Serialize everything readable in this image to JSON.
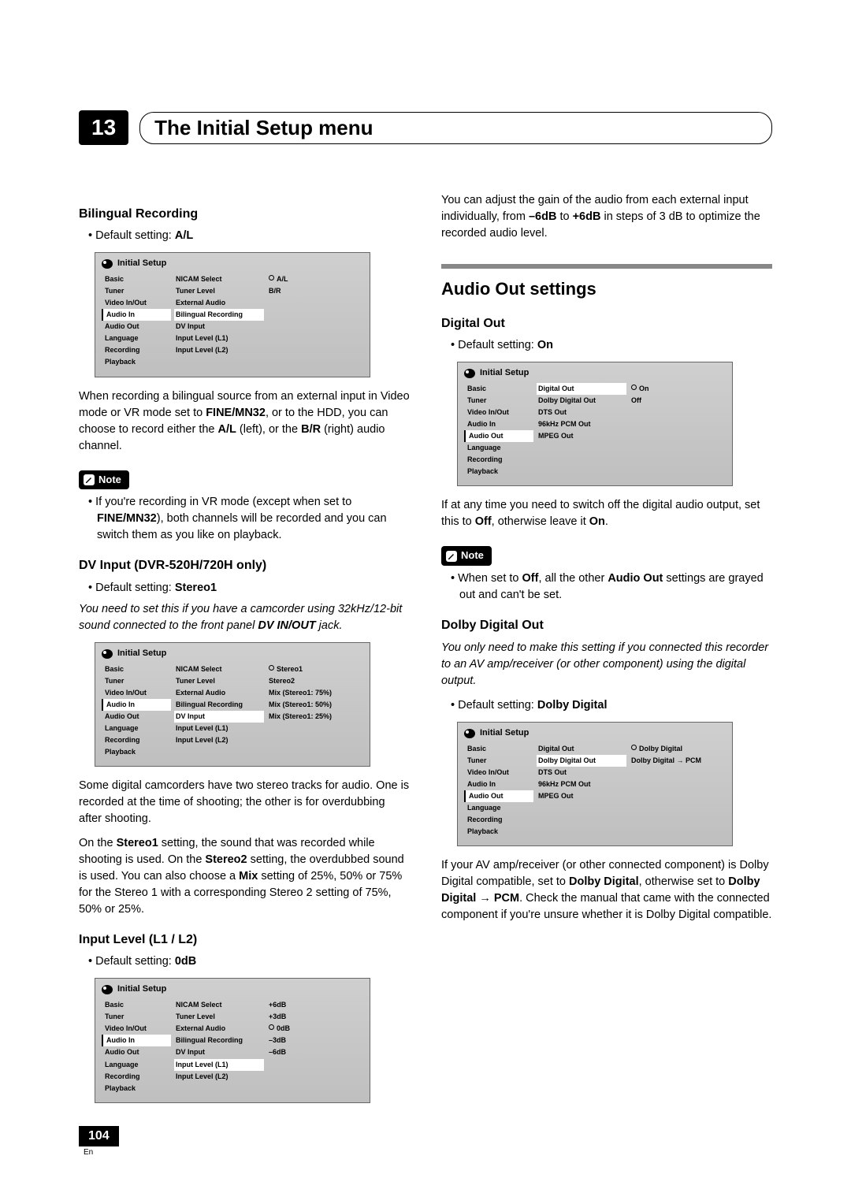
{
  "chapter": {
    "number": "13",
    "title": "The Initial Setup menu"
  },
  "page": {
    "num": "104",
    "lang": "En"
  },
  "left": {
    "h1": "Bilingual Recording",
    "h1_default": "A/L",
    "p1a": "When recording a bilingual source from an external input in Video mode or VR mode set to ",
    "p1b": "FINE/MN32",
    "p1c": ", or to the HDD, you can choose to record either the ",
    "p1d": "A/L",
    "p1e": " (left), or the ",
    "p1f": "B/R",
    "p1g": " (right) audio channel.",
    "note1a": "If you're recording in VR mode (except when set to ",
    "note1b": "FINE/MN32",
    "note1c": "), both channels will be recorded and you can switch them as you like on playback.",
    "h2": "DV Input (DVR-520H/720H only)",
    "h2_default": "Stereo1",
    "h2_ital_a": "You need to set this if you have a camcorder using 32kHz/12-bit sound connected to the front panel ",
    "h2_ital_b": "DV IN/OUT",
    "h2_ital_c": " jack.",
    "p2": "Some digital camcorders have two stereo tracks for audio. One is recorded at the time of shooting; the other is for overdubbing after shooting.",
    "p3a": "On the ",
    "p3b": "Stereo1",
    "p3c": " setting, the sound that was recorded while shooting is used. On the ",
    "p3d": "Stereo2",
    "p3e": " setting, the overdubbed sound is used. You can also choose a ",
    "p3f": "Mix",
    "p3g": " setting of 25%, 50% or 75% for the Stereo 1 with a corresponding Stereo 2 setting of 75%, 50% or 25%.",
    "h3": "Input Level (L1 / L2)",
    "h3_default": "0dB"
  },
  "right": {
    "p0a": "You can adjust the gain of the audio from each external input individually, from ",
    "p0b": "–6dB",
    "p0c": " to ",
    "p0d": "+6dB",
    "p0e": " in steps of 3 dB to optimize the recorded audio level.",
    "section": "Audio Out settings",
    "h1": "Digital Out",
    "h1_default": "On",
    "p1a": "If at any time you need to switch off the digital audio output, set this to ",
    "p1b": "Off",
    "p1c": ", otherwise leave it ",
    "p1d": "On",
    "p1e": ".",
    "note1a": "When set to ",
    "note1b": "Off",
    "note1c": ", all the other ",
    "note1d": "Audio Out",
    "note1e": " settings are grayed out and can't be set.",
    "h2": "Dolby Digital Out",
    "h2_ital": "You only need to make this setting if you connected this recorder to an AV amp/receiver (or other component) using the digital output.",
    "h2_default": "Dolby Digital",
    "p2a": "If your AV amp/receiver (or other connected component) is Dolby Digital compatible, set to ",
    "p2b": "Dolby Digital",
    "p2c": ", otherwise set to ",
    "p2d": "Dolby Digital → PCM",
    "p2e": ". Check the manual that came with the connected component if you're unsure whether it is Dolby Digital compatible."
  },
  "menus": {
    "left_items": [
      "Basic",
      "Tuner",
      "Video In/Out",
      "Audio In",
      "Audio Out",
      "Language",
      "Recording",
      "Playback"
    ],
    "title": "Initial Setup",
    "ss1": {
      "sel": "Audio In",
      "mid": [
        "NICAM Select",
        "Tuner Level",
        "External Audio",
        "Bilingual Recording",
        "DV Input",
        "Input Level (L1)",
        "Input Level (L2)"
      ],
      "hl": "Bilingual Recording",
      "right": [
        "A/L",
        "B/R"
      ],
      "rsel": "A/L"
    },
    "ss2": {
      "sel": "Audio In",
      "mid": [
        "NICAM Select",
        "Tuner Level",
        "External Audio",
        "Bilingual Recording",
        "DV Input",
        "Input Level (L1)",
        "Input Level (L2)"
      ],
      "hl": "DV Input",
      "right": [
        "Stereo1",
        "Stereo2",
        "Mix (Stereo1: 75%)",
        "Mix (Stereo1: 50%)",
        "Mix (Stereo1: 25%)"
      ],
      "rsel": "Stereo1"
    },
    "ss3": {
      "sel": "Audio In",
      "mid": [
        "NICAM Select",
        "Tuner Level",
        "External Audio",
        "Bilingual Recording",
        "DV Input",
        "Input Level (L1)",
        "Input Level (L2)"
      ],
      "hl": "Input Level (L1)",
      "right": [
        "+6dB",
        "+3dB",
        "0dB",
        "–3dB",
        "–6dB"
      ],
      "rsel": "0dB"
    },
    "ss4": {
      "sel": "Audio Out",
      "mid": [
        "Digital Out",
        "Dolby Digital Out",
        "DTS Out",
        "96kHz PCM Out",
        "MPEG Out"
      ],
      "hl": "Digital Out",
      "right": [
        "On",
        "Off"
      ],
      "rsel": "On"
    },
    "ss5": {
      "sel": "Audio Out",
      "mid": [
        "Digital Out",
        "Dolby Digital Out",
        "DTS Out",
        "96kHz PCM Out",
        "MPEG Out"
      ],
      "hl": "Dolby Digital Out",
      "right": [
        "Dolby Digital",
        "Dolby Digital → PCM"
      ],
      "rsel": "Dolby Digital"
    }
  },
  "labels": {
    "note": "Note",
    "default_setting": "Default setting: "
  }
}
